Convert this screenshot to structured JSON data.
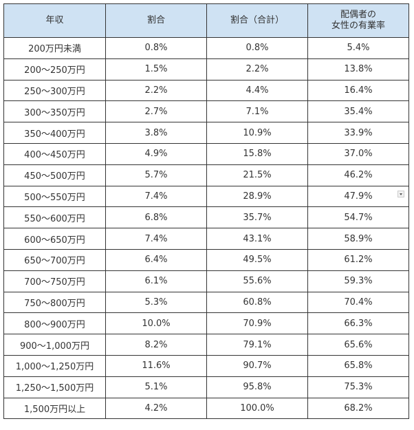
{
  "table": {
    "headers": [
      {
        "lines": [
          "年収"
        ]
      },
      {
        "lines": [
          "割合"
        ]
      },
      {
        "lines": [
          "割合（合計）"
        ]
      },
      {
        "lines": [
          "配偶者の",
          "女性の有業率"
        ]
      }
    ],
    "rows": [
      [
        "200万円未満",
        "0.8%",
        "0.8%",
        "5.4%"
      ],
      [
        "200～250万円",
        "1.5%",
        "2.2%",
        "13.8%"
      ],
      [
        "250～300万円",
        "2.2%",
        "4.4%",
        "16.4%"
      ],
      [
        "300～350万円",
        "2.7%",
        "7.1%",
        "35.4%"
      ],
      [
        "350～400万円",
        "3.8%",
        "10.9%",
        "33.9%"
      ],
      [
        "400～450万円",
        "4.9%",
        "15.8%",
        "37.0%"
      ],
      [
        "450～500万円",
        "5.7%",
        "21.5%",
        "46.2%"
      ],
      [
        "500～550万円",
        "7.4%",
        "28.9%",
        "47.9%"
      ],
      [
        "550～600万円",
        "6.8%",
        "35.7%",
        "54.7%"
      ],
      [
        "600～650万円",
        "7.4%",
        "43.1%",
        "58.9%"
      ],
      [
        "650～700万円",
        "6.4%",
        "49.5%",
        "61.2%"
      ],
      [
        "700～750万円",
        "6.1%",
        "55.6%",
        "59.3%"
      ],
      [
        "750～800万円",
        "5.3%",
        "60.8%",
        "70.4%"
      ],
      [
        "800～900万円",
        "10.0%",
        "70.9%",
        "66.3%"
      ],
      [
        "900～1,000万円",
        "8.2%",
        "79.1%",
        "65.6%"
      ],
      [
        "1,000～1,250万円",
        "11.6%",
        "90.7%",
        "65.8%"
      ],
      [
        "1,250～1,500万円",
        "5.1%",
        "95.8%",
        "75.3%"
      ],
      [
        "1,500万円以上",
        "4.2%",
        "100.0%",
        "68.2%"
      ]
    ],
    "filter_icon_row": 7,
    "colors": {
      "header_bg": "#cfe2f3",
      "border": "#333333",
      "text": "#333333"
    }
  }
}
